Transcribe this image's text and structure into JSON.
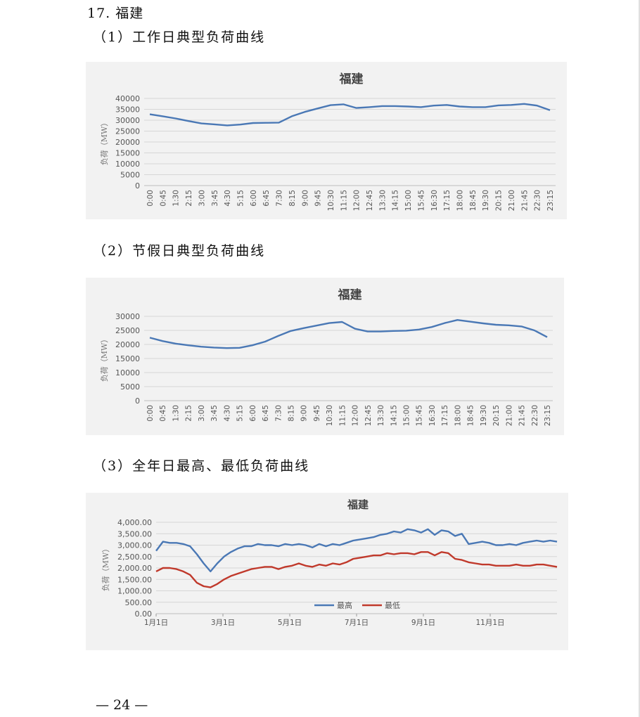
{
  "section": {
    "number": "17.",
    "title": "福建"
  },
  "subtitles": {
    "s1": "（1）工作日典型负荷曲线",
    "s2": "（2）节假日典型负荷曲线",
    "s3": "（3）全年日最高、最低负荷曲线"
  },
  "footer": {
    "page": "— 24 —"
  },
  "colors": {
    "series_blue": "#4a78b5",
    "series_red": "#c0392b",
    "grid": "#d6d6d6",
    "panel": "#f2f2f2"
  },
  "chart_data": [
    {
      "type": "line",
      "title": "福建",
      "ylabel": "负荷（MW）",
      "ylim": [
        0,
        40000
      ],
      "yticks": [
        "0",
        "5000",
        "10000",
        "15000",
        "20000",
        "25000",
        "30000",
        "35000",
        "40000"
      ],
      "xticks": [
        "0:00",
        "0:45",
        "1:30",
        "2:15",
        "3:00",
        "3:45",
        "4:30",
        "5:15",
        "6:00",
        "6:45",
        "7:30",
        "8:15",
        "9:00",
        "9:45",
        "10:30",
        "11:15",
        "12:00",
        "12:45",
        "13:30",
        "14:15",
        "15:00",
        "15:45",
        "16:30",
        "17:15",
        "18:00",
        "18:45",
        "19:30",
        "20:15",
        "21:00",
        "21:45",
        "22:30",
        "23:15"
      ],
      "grid": true,
      "series": [
        {
          "values": [
            32700,
            31800,
            30800,
            29600,
            28500,
            28100,
            27600,
            28000,
            28700,
            28800,
            28900,
            31800,
            33800,
            35400,
            36900,
            37300,
            35600,
            36000,
            36500,
            36500,
            36300,
            36000,
            36700,
            37000,
            36300,
            36000,
            36000,
            36800,
            37000,
            37500,
            36700,
            34600
          ]
        }
      ]
    },
    {
      "type": "line",
      "title": "福建",
      "ylabel": "负荷（MW）",
      "ylim": [
        0,
        30000
      ],
      "yticks": [
        "0",
        "5000",
        "10000",
        "15000",
        "20000",
        "25000",
        "30000"
      ],
      "xticks": [
        "0:00",
        "0:45",
        "1:30",
        "2:15",
        "3:00",
        "3:45",
        "4:30",
        "5:15",
        "6:00",
        "6:45",
        "7:30",
        "8:15",
        "9:00",
        "9:45",
        "10:30",
        "11:15",
        "12:00",
        "12:45",
        "13:30",
        "14:15",
        "15:00",
        "15:45",
        "16:30",
        "17:15",
        "18:00",
        "18:45",
        "19:30",
        "20:15",
        "21:00",
        "21:45",
        "22:30",
        "23:15"
      ],
      "grid": true,
      "series": [
        {
          "values": [
            22400,
            21200,
            20300,
            19700,
            19200,
            18900,
            18700,
            18800,
            19700,
            21000,
            23000,
            24800,
            25800,
            26700,
            27600,
            28000,
            25600,
            24600,
            24600,
            24800,
            24900,
            25300,
            26200,
            27600,
            28700,
            28100,
            27500,
            27000,
            26800,
            26400,
            25000,
            22600
          ]
        }
      ]
    },
    {
      "type": "line",
      "title": "福建",
      "ylabel": "负荷（MW）",
      "ylim": [
        0,
        4000
      ],
      "yticks": [
        "0.00",
        "500.00",
        "1,000.00",
        "1,500.00",
        "2,000.00",
        "2,500.00",
        "3,000.00",
        "3,500.00",
        "4,000.00"
      ],
      "xticks": [
        "1月1日",
        "3月1日",
        "5月1日",
        "7月1日",
        "9月1日",
        "11月1日"
      ],
      "legend": "bottom",
      "grid": true,
      "series": [
        {
          "name": "最高",
          "values": [
            2750,
            3150,
            3100,
            3100,
            3050,
            2950,
            2600,
            2200,
            1850,
            2200,
            2500,
            2700,
            2850,
            2950,
            2950,
            3050,
            3000,
            3000,
            2950,
            3050,
            3000,
            3050,
            3000,
            2900,
            3050,
            2950,
            3050,
            3000,
            3100,
            3200,
            3250,
            3300,
            3350,
            3450,
            3500,
            3600,
            3550,
            3700,
            3650,
            3550,
            3700,
            3450,
            3650,
            3600,
            3400,
            3500,
            3050,
            3100,
            3150,
            3100,
            3000,
            3000,
            3050,
            3000,
            3100,
            3150,
            3200,
            3150,
            3200,
            3150
          ]
        },
        {
          "name": "最低",
          "values": [
            1850,
            2000,
            2000,
            1950,
            1850,
            1700,
            1350,
            1200,
            1150,
            1300,
            1500,
            1650,
            1750,
            1850,
            1950,
            2000,
            2050,
            2050,
            1950,
            2050,
            2100,
            2200,
            2100,
            2050,
            2150,
            2100,
            2200,
            2150,
            2250,
            2400,
            2450,
            2500,
            2550,
            2550,
            2650,
            2600,
            2650,
            2650,
            2600,
            2700,
            2700,
            2550,
            2700,
            2650,
            2400,
            2350,
            2250,
            2200,
            2150,
            2150,
            2100,
            2100,
            2100,
            2150,
            2100,
            2100,
            2150,
            2150,
            2100,
            2050
          ]
        }
      ]
    }
  ]
}
